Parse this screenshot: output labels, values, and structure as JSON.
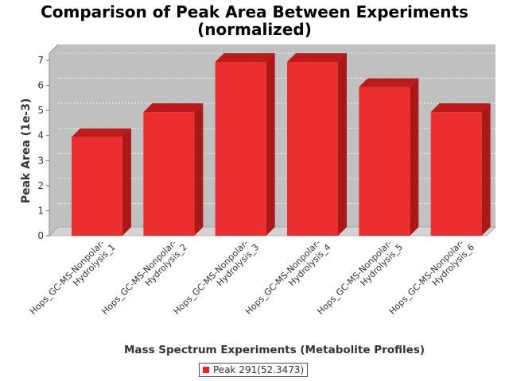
{
  "chart_data": {
    "type": "bar",
    "title_line1": "Comparison of Peak Area Between Experiments",
    "title_line2": "(normalized)",
    "xlabel": "Mass Spectrum Experiments (Metabolite Profiles)",
    "ylabel": "Peak Area (1e-3)",
    "ylim": [
      0,
      7
    ],
    "yticks": [
      "0",
      "1",
      "2",
      "3",
      "4",
      "5",
      "6",
      "7"
    ],
    "grid": true,
    "legend_position": "bottom",
    "categories": [
      [
        "Hops_GC-MS-Nonpolar-",
        "Hydrolysis_1"
      ],
      [
        "Hops_GC-MS-Nonpolar-",
        "Hydrolysis_2"
      ],
      [
        "Hops_GC-MS-Nonpolar-",
        "Hydrolysis_3"
      ],
      [
        "Hops_GC-MS-Nonpolar-",
        "Hydrolysis_4"
      ],
      [
        "Hops_GC-MS-Nonpolar-",
        "Hydrolysis_5"
      ],
      [
        "Hops_GC-MS-Nonpolar-",
        "Hydrolysis_6"
      ]
    ],
    "series": [
      {
        "name": "Peak 291(52.3473)",
        "values": [
          4,
          5,
          7,
          7,
          6,
          5
        ],
        "color": "#ee2222"
      }
    ],
    "plot_background": "#c0c0c0"
  }
}
